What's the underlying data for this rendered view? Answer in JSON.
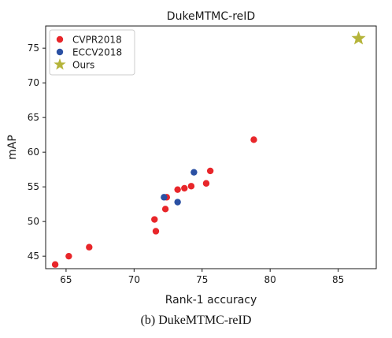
{
  "chart_data": {
    "type": "scatter",
    "title": "DukeMTMC-reID",
    "xlabel": "Rank-1 accuracy",
    "ylabel": "mAP",
    "xlim": [
      63.5,
      87.8
    ],
    "ylim": [
      43.2,
      78.2
    ],
    "xticks": [
      65,
      70,
      75,
      80,
      85
    ],
    "yticks": [
      45,
      50,
      55,
      60,
      65,
      70,
      75
    ],
    "grid": false,
    "legend_position": "top-left",
    "series": [
      {
        "name": "CVPR2018",
        "marker": "circle",
        "color": "#e8262a",
        "points": [
          {
            "x": 64.2,
            "y": 43.8
          },
          {
            "x": 65.2,
            "y": 45.0
          },
          {
            "x": 66.7,
            "y": 46.3
          },
          {
            "x": 71.6,
            "y": 48.6
          },
          {
            "x": 71.5,
            "y": 50.3
          },
          {
            "x": 72.3,
            "y": 51.8
          },
          {
            "x": 72.4,
            "y": 53.5
          },
          {
            "x": 73.2,
            "y": 54.6
          },
          {
            "x": 73.7,
            "y": 54.8
          },
          {
            "x": 74.2,
            "y": 55.1
          },
          {
            "x": 75.3,
            "y": 55.5
          },
          {
            "x": 75.6,
            "y": 57.3
          },
          {
            "x": 78.8,
            "y": 61.8
          }
        ]
      },
      {
        "name": "ECCV2018",
        "marker": "circle",
        "color": "#2a50a3",
        "points": [
          {
            "x": 72.2,
            "y": 53.5
          },
          {
            "x": 73.2,
            "y": 52.8
          },
          {
            "x": 74.4,
            "y": 57.1
          }
        ]
      },
      {
        "name": "Ours",
        "marker": "star",
        "color": "#b5b43a",
        "points": [
          {
            "x": 86.5,
            "y": 76.4
          }
        ]
      }
    ]
  },
  "caption": "(b)  DukeMTMC-reID"
}
